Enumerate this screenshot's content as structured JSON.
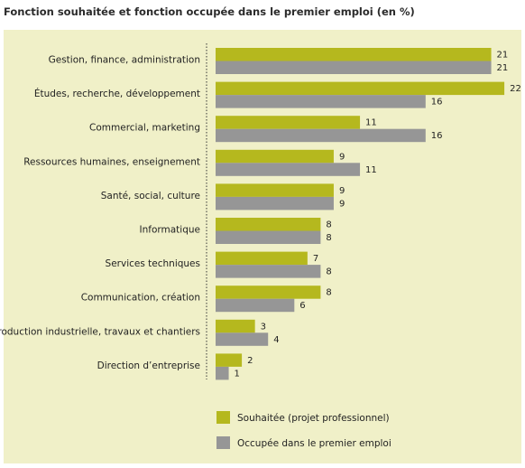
{
  "chart_data": {
    "type": "bar",
    "orientation": "horizontal",
    "title": "Fonction souhaitée et fonction occupée dans le premier emploi (en %)",
    "categories": [
      "Gestion, finance, administration",
      "Études, recherche, développement",
      "Commercial, marketing",
      "Ressources humaines, enseignement",
      "Santé, social, culture",
      "Informatique",
      "Services techniques",
      "Communication, création",
      "Production industrielle, travaux et chantiers",
      "Direction d’entreprise"
    ],
    "series": [
      {
        "name": "Souhaitée (projet professionnel)",
        "color": "#b5b81e",
        "values": [
          21,
          22,
          11,
          9,
          9,
          8,
          7,
          8,
          3,
          2
        ]
      },
      {
        "name": "Occupée dans le premier emploi",
        "color": "#969696",
        "values": [
          21,
          16,
          16,
          11,
          9,
          8,
          8,
          6,
          4,
          1
        ]
      }
    ],
    "xlim": [
      0,
      22
    ],
    "grid": false,
    "legend_position": "bottom",
    "background": "#f0f0c8"
  }
}
